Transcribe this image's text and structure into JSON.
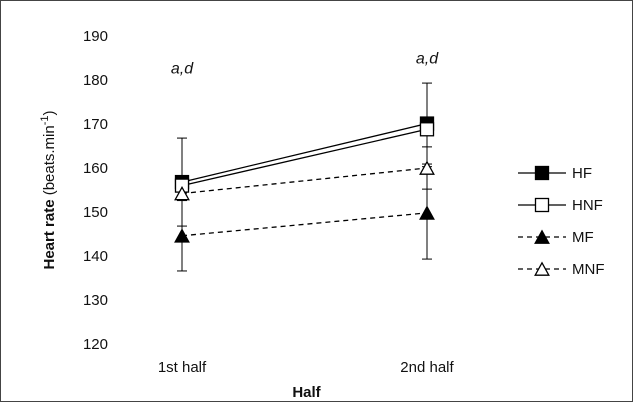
{
  "chart_data": {
    "type": "line",
    "categories": [
      "1st half",
      "2nd half"
    ],
    "xlabel": "Half",
    "ylabel": {
      "bold": "Heart rate",
      "unit_prefix": "(beats.min",
      "unit_sup": "-1",
      "unit_suffix": ")"
    },
    "ylim": [
      120,
      190
    ],
    "yticks": [
      120,
      130,
      140,
      150,
      160,
      170,
      180,
      190
    ],
    "grid": false,
    "legend_position": "right",
    "annotations": [
      {
        "text": "a,d",
        "category": "1st half",
        "y": 181.5
      },
      {
        "text": "a,d",
        "category": "2nd half",
        "y": 183.7
      }
    ],
    "series": [
      {
        "name": "HF",
        "values": [
          156.8,
          170.1
        ],
        "error": [
          10.0,
          9.2
        ],
        "marker": "square",
        "filled": true,
        "dash": "solid",
        "color": "#000000"
      },
      {
        "name": "HNF",
        "values": [
          156.0,
          168.8
        ],
        "error": [
          null,
          null
        ],
        "marker": "square",
        "filled": false,
        "dash": "solid",
        "color": "#000000"
      },
      {
        "name": "MF",
        "values": [
          144.6,
          149.8
        ],
        "error": [
          8.0,
          10.5
        ],
        "marker": "triangle",
        "filled": true,
        "dash": "dashed",
        "color": "#000000"
      },
      {
        "name": "MNF",
        "values": [
          154.2,
          160.0
        ],
        "error": [
          null,
          4.8
        ],
        "marker": "triangle",
        "filled": false,
        "dash": "dashed",
        "color": "#000000"
      }
    ]
  }
}
